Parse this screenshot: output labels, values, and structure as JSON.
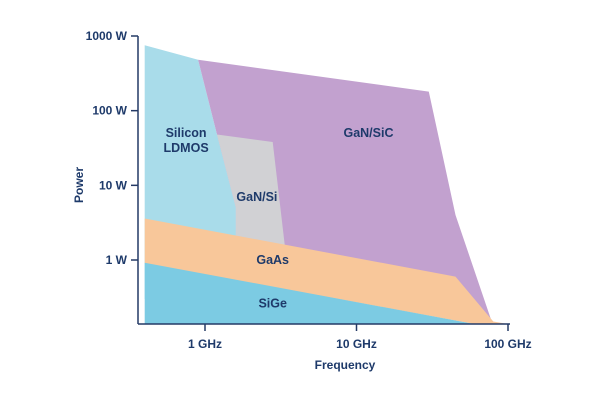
{
  "chart_data": {
    "type": "area",
    "xlabel": "Frequency",
    "ylabel": "Power",
    "x_scale": "log",
    "y_scale": "log",
    "x_ticks": [
      {
        "value": 1,
        "label": "1 GHz"
      },
      {
        "value": 10,
        "label": "10 GHz"
      },
      {
        "value": 100,
        "label": "100 GHz"
      }
    ],
    "y_ticks": [
      {
        "value": 1,
        "label": "1 W"
      },
      {
        "value": 10,
        "label": "10 W"
      },
      {
        "value": 100,
        "label": "100 W"
      },
      {
        "value": 1000,
        "label": "1000 W"
      }
    ],
    "xlim_ghz": [
      0.4,
      100
    ],
    "ylim_w": [
      0.1,
      1000
    ],
    "regions": [
      {
        "name": "Silicon LDMOS",
        "label_lines": [
          "Silicon",
          "LDMOS"
        ],
        "color": "#a9dcea",
        "polygon": [
          [
            0.4,
            750
          ],
          [
            0.9,
            480
          ],
          [
            1.2,
            48
          ],
          [
            1.6,
            5
          ],
          [
            1.6,
            0.3
          ],
          [
            0.4,
            0.3
          ]
        ],
        "label_at": [
          0.75,
          40
        ]
      },
      {
        "name": "GaN/SiC",
        "label_lines": [
          "GaN/SiC"
        ],
        "color": "#c2a1cf",
        "polygon": [
          [
            0.9,
            480
          ],
          [
            30,
            180
          ],
          [
            45,
            4
          ],
          [
            78,
            0.15
          ],
          [
            10,
            0.3
          ],
          [
            1.6,
            0.3
          ],
          [
            1.6,
            5
          ],
          [
            1.2,
            48
          ]
        ],
        "label_at": [
          12,
          50
        ]
      },
      {
        "name": "GaN/Si",
        "label_lines": [
          "GaN/Si"
        ],
        "color": "#d1d1d4",
        "polygon": [
          [
            1.2,
            48
          ],
          [
            2.8,
            38
          ],
          [
            3.4,
            1.3
          ],
          [
            3.4,
            0.3
          ],
          [
            1.6,
            0.3
          ],
          [
            1.6,
            5
          ]
        ],
        "label_at": [
          2.2,
          7
        ]
      },
      {
        "name": "GaAs",
        "label_lines": [
          "GaAs"
        ],
        "color": "#f8c79a",
        "polygon": [
          [
            0.4,
            3.6
          ],
          [
            45,
            0.6
          ],
          [
            80,
            0.15
          ],
          [
            100,
            0.08
          ],
          [
            60,
            0.07
          ],
          [
            0.4,
            0.9
          ]
        ],
        "label_at": [
          2.8,
          1
        ]
      },
      {
        "name": "SiGe",
        "label_lines": [
          "SiGe"
        ],
        "color": "#7ccbe3",
        "polygon": [
          [
            0.4,
            0.92
          ],
          [
            60,
            0.07
          ],
          [
            100,
            0.08
          ],
          [
            100,
            0.1
          ],
          [
            0.4,
            0.1
          ]
        ],
        "label_at": [
          2.8,
          0.26
        ]
      }
    ],
    "text_color": "#1e3a6a"
  }
}
